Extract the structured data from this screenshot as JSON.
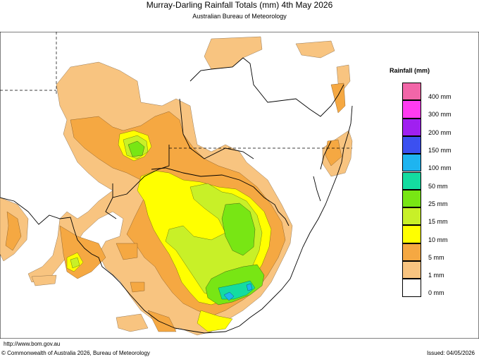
{
  "title": "Murray-Darling Rainfall Totals (mm)     4th May 2026",
  "subtitle": "Australian Bureau of Meteorology",
  "legend": {
    "title": "Rainfall (mm)",
    "items": [
      {
        "label": "400 mm",
        "color": "#f266a8"
      },
      {
        "label": "300 mm",
        "color": "#ff3cf0"
      },
      {
        "label": "200 mm",
        "color": "#a020f0"
      },
      {
        "label": "150 mm",
        "color": "#3c50f0"
      },
      {
        "label": "100 mm",
        "color": "#1eb4f0"
      },
      {
        "label": "50 mm",
        "color": "#14dca0"
      },
      {
        "label": "25 mm",
        "color": "#78e614"
      },
      {
        "label": "15 mm",
        "color": "#c8f028"
      },
      {
        "label": "10 mm",
        "color": "#ffff00"
      },
      {
        "label": "5 mm",
        "color": "#f5a842"
      },
      {
        "label": "1 mm",
        "color": "#f8c480"
      },
      {
        "label": "0 mm",
        "color": "#ffffff"
      }
    ]
  },
  "footer": {
    "url": "http://www.bom.gov.au",
    "copyright": "© Commonwealth of Australia 2026, Bureau of Meteorology",
    "issued": "Issued: 04/05/2026"
  }
}
